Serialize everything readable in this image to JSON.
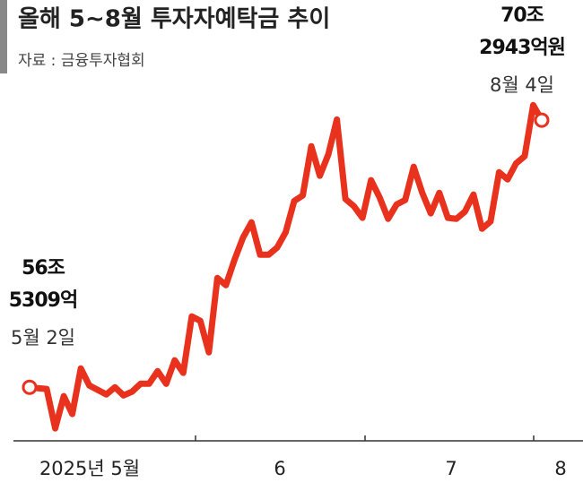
{
  "chart_data": {
    "type": "line",
    "title": "올해 5~8월 투자자예탁금 추이",
    "source": "자료 : 금융투자협회",
    "months": [
      "2025년 5월",
      "6",
      "7",
      "8"
    ],
    "annotations": [
      {
        "point": 0,
        "lines": [
          "56조",
          "5309억"
        ],
        "date": "5월 2일"
      },
      {
        "point": 60,
        "lines": [
          "70조",
          "2943억원"
        ],
        "date": "8월 4일"
      }
    ],
    "color": "#e8321e",
    "ylim": [
      54,
      71.5
    ],
    "values": [
      56.5309,
      56.48,
      56.44,
      54.41,
      56.07,
      55.15,
      57.5,
      56.62,
      56.39,
      56.16,
      56.53,
      56.11,
      56.3,
      56.71,
      56.71,
      57.36,
      56.71,
      57.92,
      57.27,
      60.18,
      59.95,
      58.33,
      62.16,
      61.79,
      63.09,
      64.24,
      65.03,
      63.36,
      63.36,
      63.73,
      64.52,
      66.13,
      66.41,
      68.95,
      67.43,
      68.53,
      70.33,
      66.23,
      65.86,
      65.26,
      67.2,
      66.32,
      65.21,
      65.95,
      66.18,
      67.89,
      66.55,
      65.49,
      66.55,
      65.26,
      65.21,
      65.58,
      66.46,
      64.7,
      65.07,
      67.61,
      67.24,
      68.07,
      68.44,
      71.07,
      70.2943
    ]
  }
}
